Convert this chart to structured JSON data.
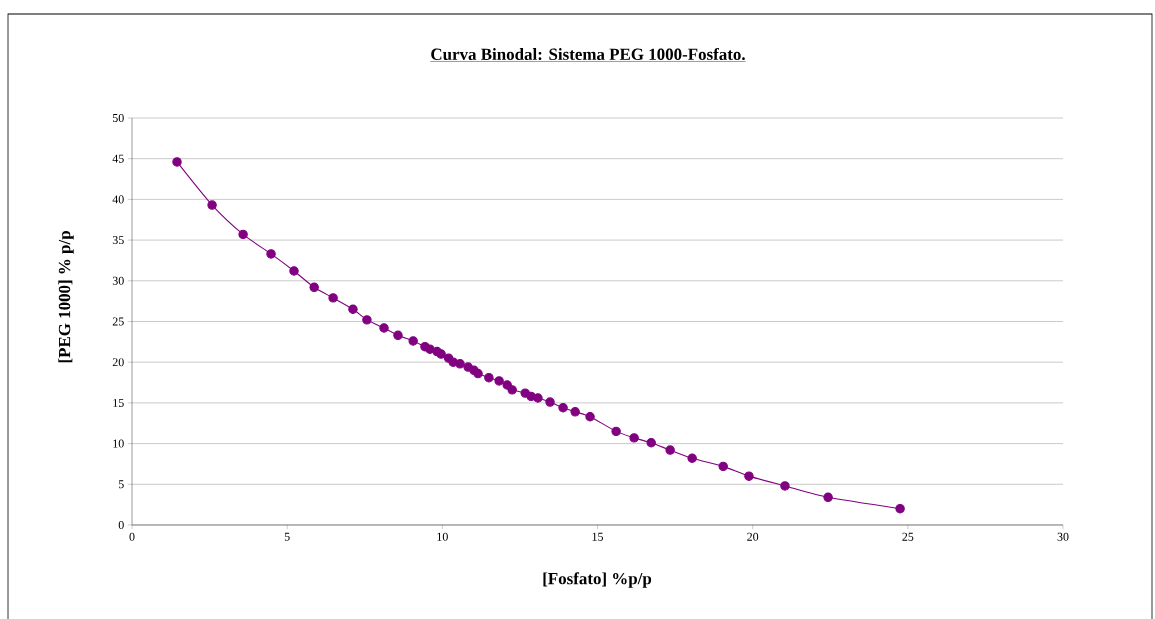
{
  "chart_data": {
    "type": "line",
    "title": "Curva Binodal: Sistema PEG 1000-Fosfato.",
    "xlabel": "[Fosfato] %p/p",
    "ylabel": "[PEG 1000] % p/p",
    "series": [
      {
        "color": "#800080",
        "x": [
          1.45,
          2.58,
          3.58,
          4.48,
          5.22,
          5.87,
          6.48,
          7.12,
          7.57,
          8.12,
          8.57,
          9.06,
          9.44,
          9.6,
          9.83,
          9.96,
          10.2,
          10.35,
          10.57,
          10.83,
          11.02,
          11.15,
          11.5,
          11.83,
          12.09,
          12.25,
          12.67,
          12.86,
          13.08,
          13.47,
          13.89,
          14.28,
          14.76,
          15.6,
          16.18,
          16.73,
          17.34,
          18.05,
          19.05,
          19.88,
          21.04,
          22.43,
          24.75
        ],
        "values": [
          44.6,
          39.3,
          35.7,
          33.3,
          31.2,
          29.2,
          27.9,
          26.5,
          25.2,
          24.2,
          23.3,
          22.6,
          21.9,
          21.6,
          21.3,
          21.0,
          20.5,
          20.0,
          19.8,
          19.4,
          19.0,
          18.6,
          18.1,
          17.7,
          17.2,
          16.6,
          16.2,
          15.8,
          15.6,
          15.1,
          14.4,
          13.9,
          13.3,
          11.5,
          10.7,
          10.1,
          9.2,
          8.2,
          7.2,
          6.0,
          4.8,
          3.4,
          2.0
        ]
      }
    ],
    "xlim": [
      0,
      30
    ],
    "ylim": [
      0,
      50
    ],
    "xticks": [
      0,
      5,
      10,
      15,
      20,
      25,
      30
    ],
    "yticks": [
      0,
      5,
      10,
      15,
      20,
      25,
      30,
      35,
      40,
      45,
      50
    ],
    "grid": "y",
    "marker": "circle",
    "line_style": "solid"
  }
}
